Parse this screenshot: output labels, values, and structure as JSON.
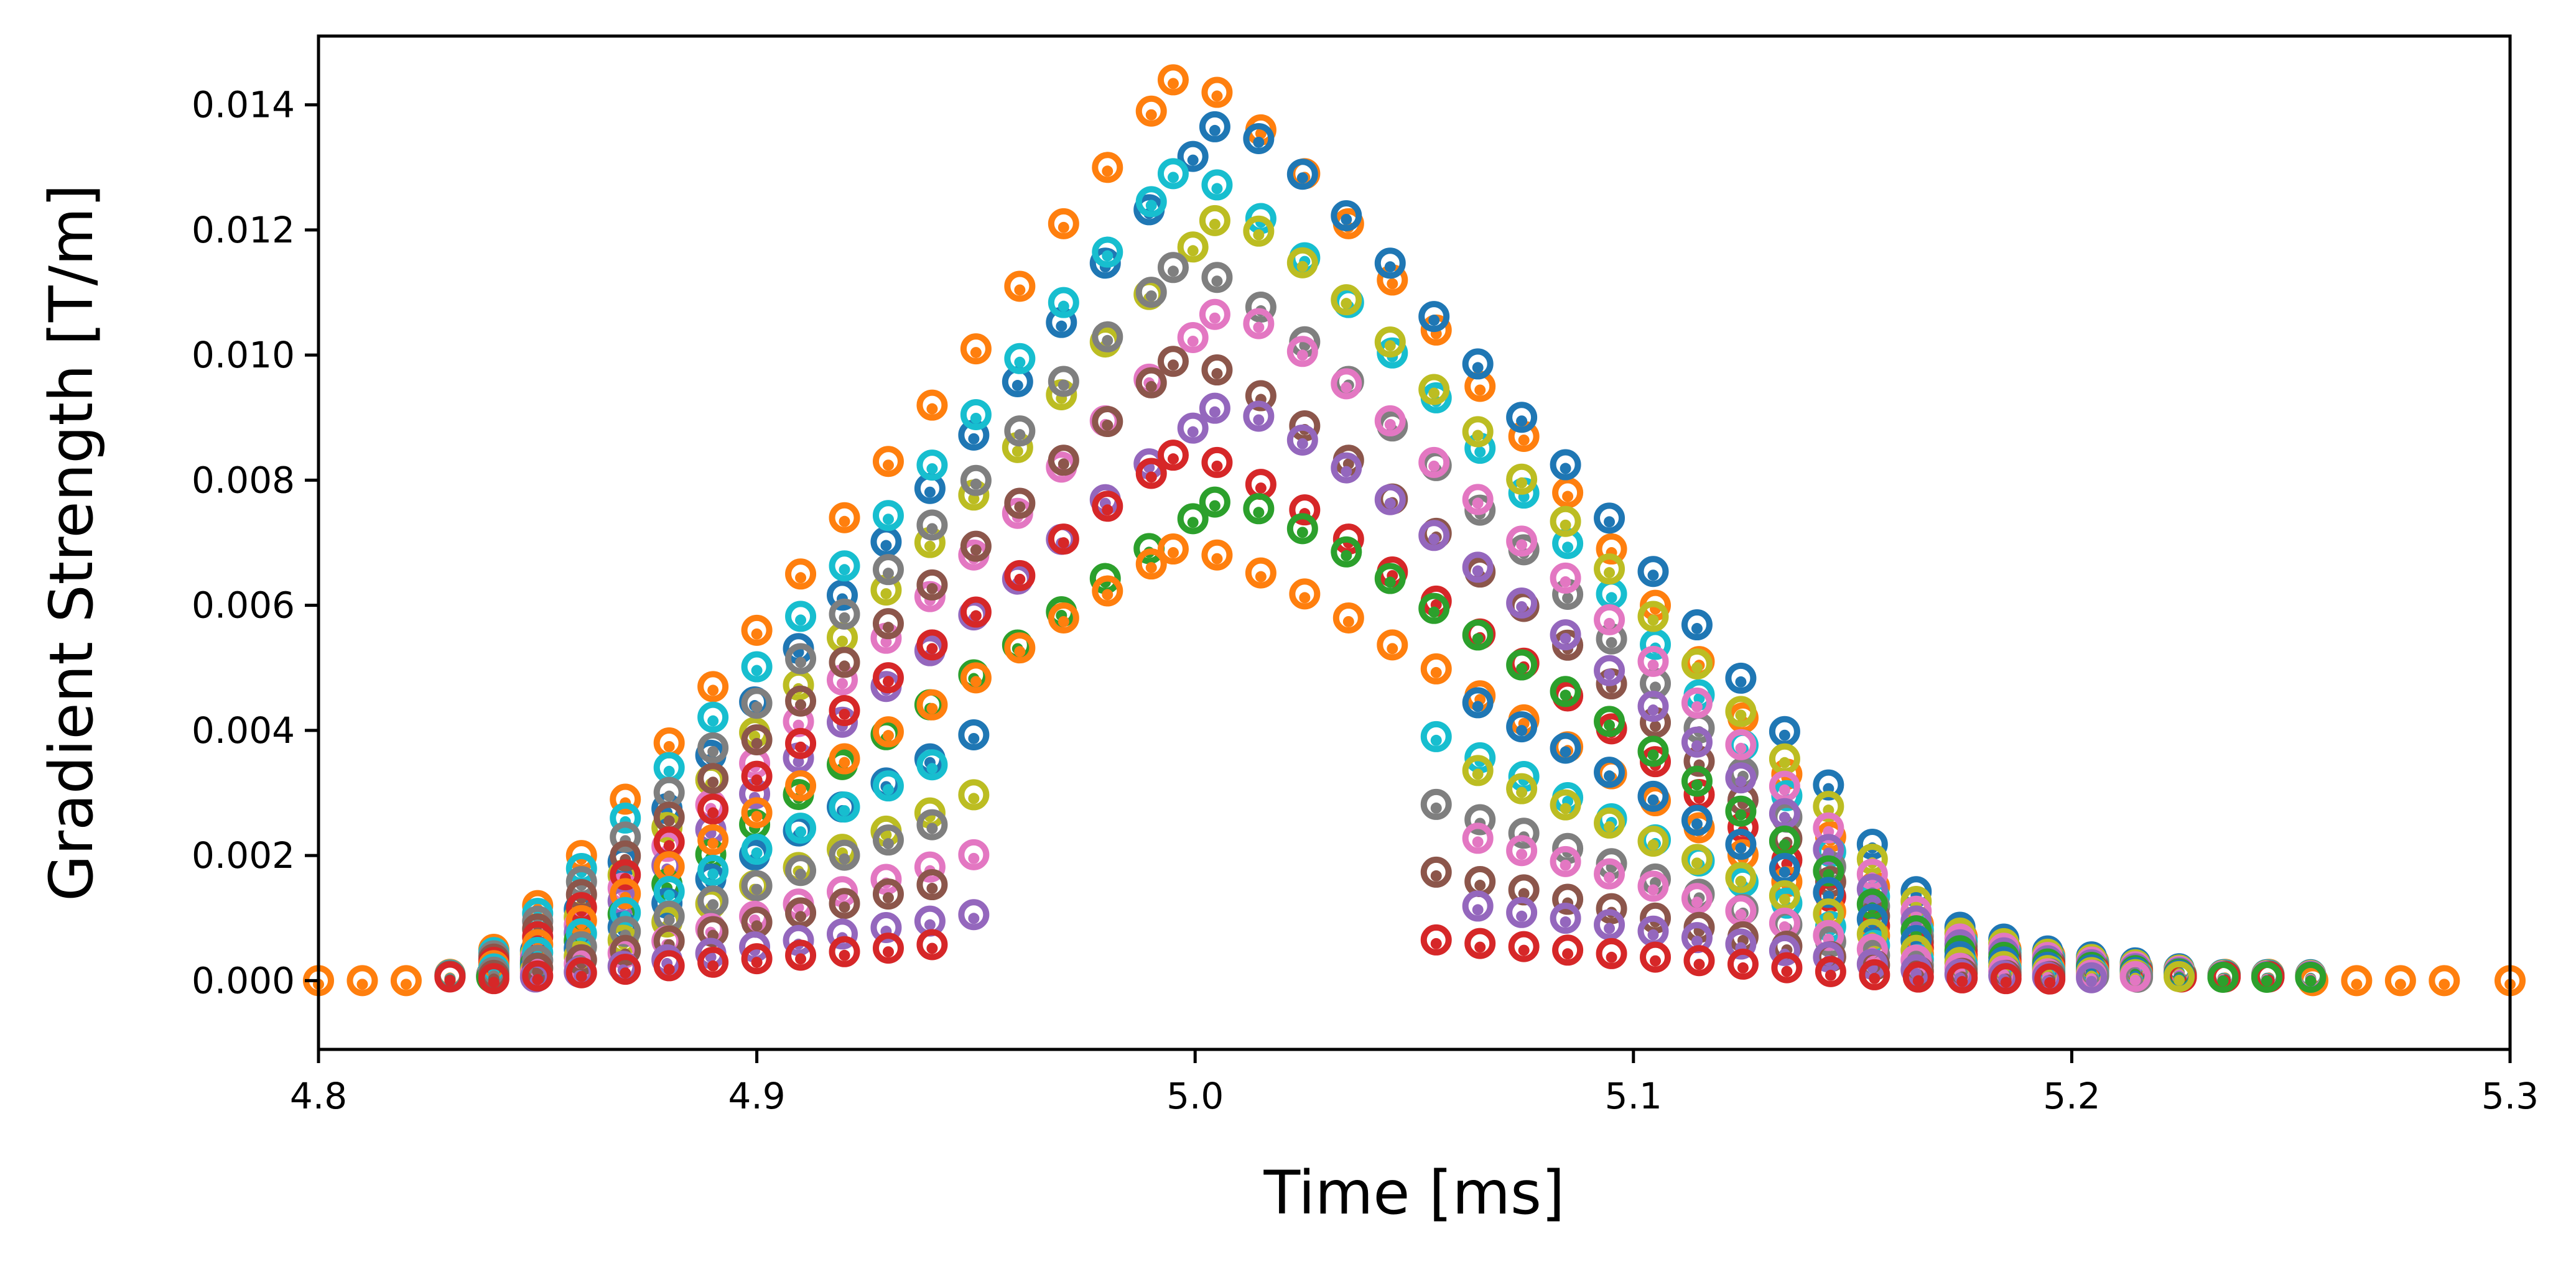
{
  "chart_data": {
    "type": "scatter",
    "title": "",
    "xlabel": "Time [ms]",
    "ylabel": "Gradient Strength [T/m]",
    "xlim": [
      4.8,
      5.3
    ],
    "ylim": [
      -0.0011,
      0.0151
    ],
    "xticks": [
      4.8,
      4.9,
      5.0,
      5.1,
      5.2,
      5.3
    ],
    "xtick_labels": [
      "4.8",
      "4.9",
      "5.0",
      "5.1",
      "5.2",
      "5.3"
    ],
    "yticks": [
      0.0,
      0.002,
      0.004,
      0.006,
      0.008,
      0.01,
      0.012,
      0.014
    ],
    "ytick_labels": [
      "0.000",
      "0.002",
      "0.004",
      "0.006",
      "0.008",
      "0.010",
      "0.012",
      "0.014"
    ],
    "grid": false,
    "legend": "none",
    "marker": "hollow circle with small filled center",
    "palette": [
      "#ff7f0e",
      "#1f77b4",
      "#17becf",
      "#bcbd22",
      "#7f7f7f",
      "#e377c2",
      "#8c564b",
      "#9467bd",
      "#d62728",
      "#2ca02c"
    ],
    "series_description": "One series per column of dots; each series is a triangular gradient pulse (peak near t=5.0 ms) ranging from ~0.0144 T/m down to ~0.0004 T/m, colors cycling through the palette.",
    "series": [
      {
        "name": "orange outer",
        "color": "#ff7f0e",
        "x": [
          4.8,
          4.81,
          4.82,
          4.83,
          4.84,
          4.85,
          4.86,
          4.87,
          4.88,
          4.89,
          4.9,
          4.91,
          4.92,
          4.93,
          4.94,
          4.95,
          4.96,
          4.97,
          4.98,
          4.99,
          4.995,
          5.005,
          5.015,
          5.025,
          5.035,
          5.045,
          5.055,
          5.065,
          5.075,
          5.085,
          5.095,
          5.105,
          5.115,
          5.125,
          5.135,
          5.145,
          5.155,
          5.165,
          5.175,
          5.185,
          5.195,
          5.205,
          5.215,
          5.225,
          5.235,
          5.245,
          5.255,
          5.265,
          5.275,
          5.285,
          5.3
        ],
        "y": [
          0.0,
          0.0,
          0.0,
          0.0001,
          0.0005,
          0.0012,
          0.002,
          0.0029,
          0.0038,
          0.0047,
          0.0056,
          0.0065,
          0.0074,
          0.0083,
          0.0092,
          0.0101,
          0.0111,
          0.0121,
          0.013,
          0.0139,
          0.0144,
          0.0142,
          0.0136,
          0.0129,
          0.0121,
          0.0112,
          0.0104,
          0.0095,
          0.0087,
          0.0078,
          0.0069,
          0.006,
          0.0051,
          0.0042,
          0.0033,
          0.0023,
          0.0015,
          0.0009,
          0.0007,
          0.0005,
          0.0004,
          0.0003,
          0.0002,
          0.0001,
          0.0001,
          0.0001,
          0.0,
          0.0,
          0.0,
          0.0,
          0.0
        ]
      }
    ]
  }
}
